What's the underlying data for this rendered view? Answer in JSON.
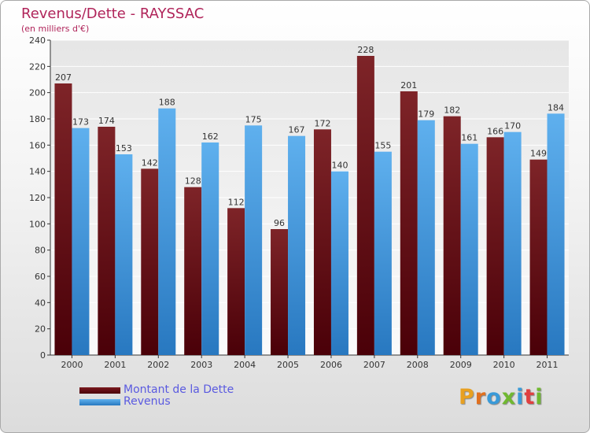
{
  "title": "Revenus/Dette - RAYSSAC",
  "subtitle": "(en milliers d'€)",
  "legend": {
    "debt_label": "Montant de la Dette",
    "revenue_label": "Revenus"
  },
  "logo_text": "Proxiti",
  "colors": {
    "debt": "#7a1a1e",
    "debt_dark": "#4a0008",
    "revenue": "#4aa0e0",
    "revenue_dark": "#2878c0",
    "title": "#b0245a"
  },
  "chart_data": {
    "type": "bar",
    "title": "Revenus/Dette - RAYSSAC",
    "subtitle": "(en milliers d'€)",
    "categories": [
      "2000",
      "2001",
      "2002",
      "2003",
      "2004",
      "2005",
      "2006",
      "2007",
      "2008",
      "2009",
      "2010",
      "2011"
    ],
    "series": [
      {
        "name": "Montant de la Dette",
        "values": [
          207,
          174,
          142,
          128,
          112,
          96,
          172,
          228,
          201,
          182,
          166,
          149
        ]
      },
      {
        "name": "Revenus",
        "values": [
          173,
          153,
          188,
          162,
          175,
          167,
          140,
          155,
          179,
          161,
          170,
          184
        ]
      }
    ],
    "ylim": [
      0,
      240
    ],
    "yticks": [
      0,
      20,
      40,
      60,
      80,
      100,
      120,
      140,
      160,
      180,
      200,
      220,
      240
    ],
    "grid": true,
    "legend_position": "bottom-left"
  }
}
